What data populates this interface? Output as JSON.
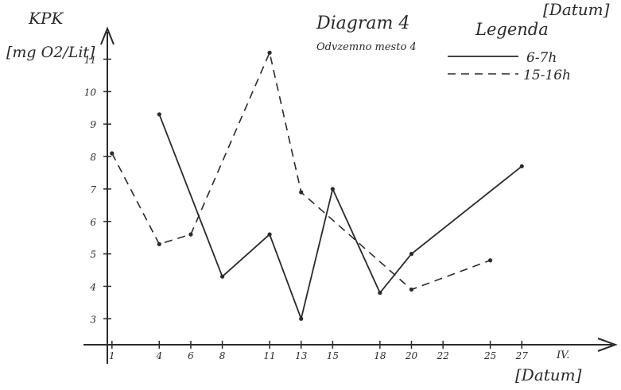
{
  "header": {
    "corner_label": "[Datum]"
  },
  "chart_data": {
    "type": "line",
    "title": "Diagram 4",
    "subtitle": "Odvzemno mesto 4",
    "ylabel": "KPK",
    "yunit": "[mg O2/Lit]",
    "xlabel": "[Datum]",
    "x_suffix": "IV.",
    "legend_title": "Legenda",
    "legend_position": "top-right",
    "ylim": [
      2.2,
      11.6
    ],
    "xlim": [
      0,
      28.5
    ],
    "grid": false,
    "y_ticks": [
      3,
      4,
      5,
      6,
      7,
      8,
      9,
      10,
      11
    ],
    "x_ticks": [
      1,
      4,
      6,
      8,
      11,
      13,
      15,
      18,
      20,
      22,
      25,
      27
    ],
    "series": [
      {
        "name": "6-7h",
        "style": "solid",
        "points": [
          [
            4,
            9.3
          ],
          [
            8,
            4.3
          ],
          [
            11,
            5.6
          ],
          [
            13,
            3.0
          ],
          [
            15,
            7.0
          ],
          [
            18,
            3.8
          ],
          [
            20,
            5.0
          ],
          [
            27,
            7.7
          ]
        ]
      },
      {
        "name": "15-16h",
        "style": "dashed",
        "points": [
          [
            1,
            8.1
          ],
          [
            4,
            5.3
          ],
          [
            6,
            5.6
          ],
          [
            11,
            11.2
          ],
          [
            13,
            6.9
          ],
          [
            20,
            3.9
          ],
          [
            25,
            4.8
          ]
        ]
      }
    ]
  }
}
